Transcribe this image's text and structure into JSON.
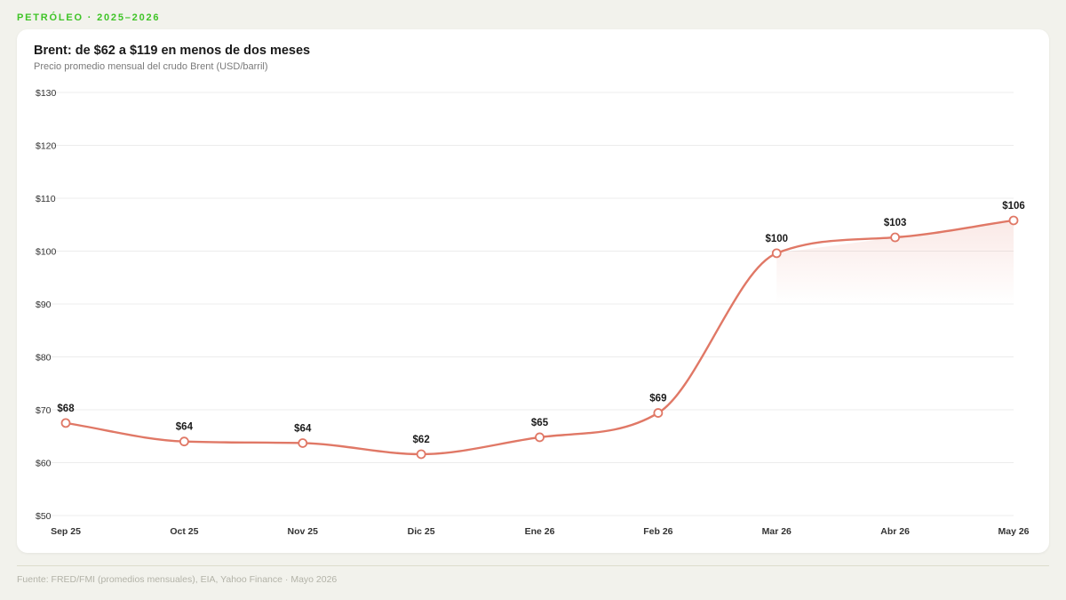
{
  "header": {
    "eyebrow": "PETRÓLEO · 2025–2026"
  },
  "chart_data": {
    "type": "line",
    "title": "Brent: de $62 a $119 en menos de dos meses",
    "subtitle": "Precio promedio mensual del crudo Brent (USD/barril)",
    "xlabel": "",
    "ylabel": "",
    "categories": [
      "Sep 25",
      "Oct 25",
      "Nov 25",
      "Dic 25",
      "Ene 26",
      "Feb 26",
      "Mar 26",
      "Abr 26",
      "May 26"
    ],
    "series": [
      {
        "values": [
          67.5,
          64,
          63.7,
          61.6,
          64.8,
          69.4,
          99.6,
          102.6,
          105.8
        ],
        "labels": [
          "$68",
          "$64",
          "$64",
          "$62",
          "$65",
          "$69",
          "$100",
          "$103",
          "$106"
        ]
      }
    ],
    "ylim": [
      50,
      130
    ],
    "yticks": [
      50,
      60,
      70,
      80,
      90,
      100,
      110,
      120,
      130
    ],
    "ytick_labels": [
      "$50",
      "$60",
      "$70",
      "$80",
      "$90",
      "$100",
      "$110",
      "$120",
      "$130"
    ],
    "grid": true,
    "line_color": "#e07866",
    "area_shaded_from_category": "Mar 26"
  },
  "footer": {
    "source": "Fuente: FRED/FMI (promedios mensuales), EIA, Yahoo Finance · Mayo 2026"
  }
}
